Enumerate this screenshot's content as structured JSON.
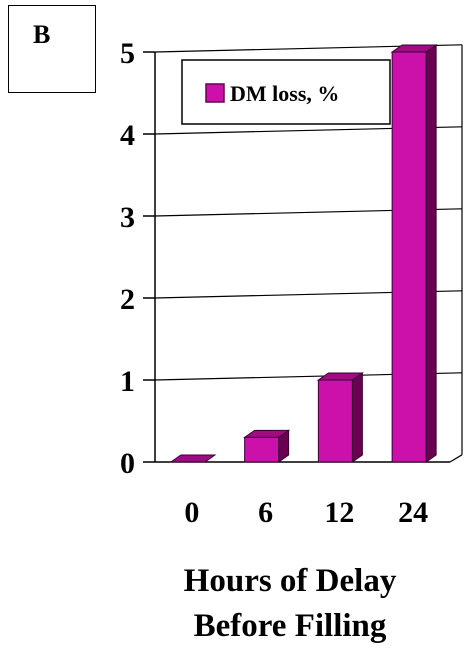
{
  "panel_label": "B",
  "chart_data": {
    "type": "bar",
    "categories": [
      "0",
      "6",
      "12",
      "24"
    ],
    "series": [
      {
        "name": "DM loss, %",
        "values": [
          0,
          0.3,
          1.0,
          5.0
        ]
      }
    ],
    "xlabel_line1": "Hours of Delay",
    "xlabel_line2": "Before Filling",
    "ylabel": "",
    "ylim": [
      0,
      5
    ],
    "yticks": [
      "0",
      "1",
      "2",
      "3",
      "4",
      "5"
    ],
    "grid": true,
    "legend_position": "top-left",
    "bar_color": "#cc11aa",
    "bar_side_color": "#6a0050",
    "bar_top_color": "#9e0c84"
  }
}
